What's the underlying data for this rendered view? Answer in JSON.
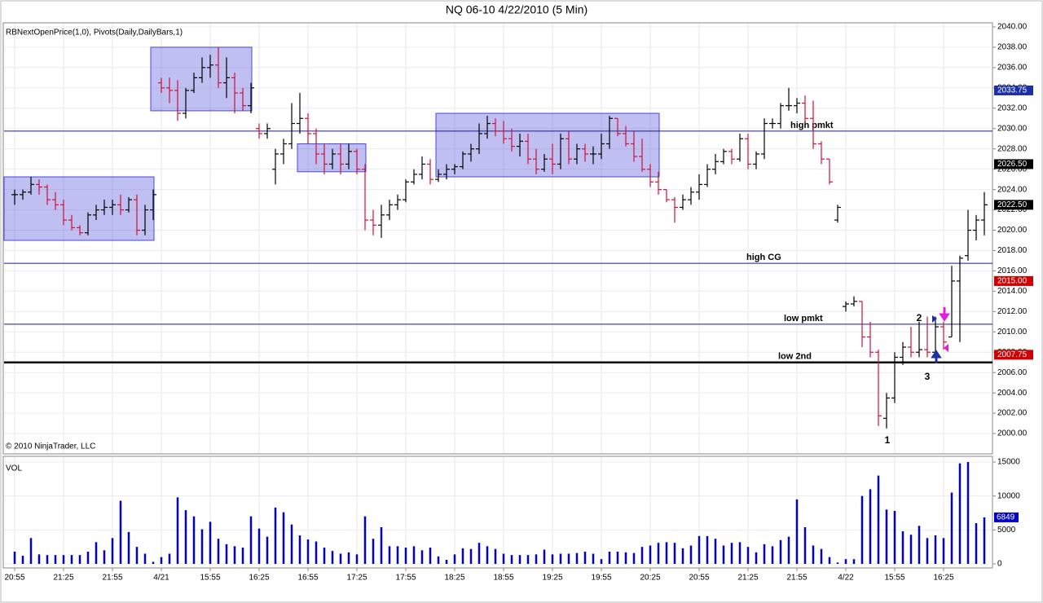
{
  "chart_data": [
    {
      "type": "ohlc",
      "title": "NQ 06-10  4/22/2010 (5 Min)",
      "subtitle": "RBNextOpenPrice(1,0), Pivots(Daily,DailyBars,1)",
      "footer": "© 2010 NinjaTrader, LLC",
      "up_color": "#000000",
      "down_color": "#d0103a",
      "box_color": "#4848d8",
      "open": [
        2023.5,
        2023.5,
        2023.75,
        2024.5,
        2024.25,
        2023,
        2022.5,
        2021,
        2020.25,
        2019.75,
        2021.5,
        2022,
        2022.25,
        2022.5,
        2022,
        2023,
        2020,
        2022,
        2034.5,
        2034,
        2033.75,
        2031.5,
        2033.75,
        2035,
        2036,
        2036.25,
        2034.5,
        2035,
        2033.5,
        2032.25,
        2030,
        2029.5,
        2026,
        2027.5,
        2028.5,
        2030.5,
        2031,
        2029.5,
        2027.5,
        2026.5,
        2027.5,
        2026.5,
        2027.75,
        2026,
        2021,
        2020.5,
        2021.5,
        2022.5,
        2023,
        2024.75,
        2025.5,
        2026.5,
        2025,
        2025.5,
        2026,
        2026.25,
        2027.5,
        2028,
        2029.5,
        2030.5,
        2029.75,
        2029,
        2028.25,
        2028.75,
        2027,
        2026,
        2027,
        2026.5,
        2029,
        2027,
        2028,
        2027.5,
        2027.5,
        2028.5,
        2031,
        2029.5,
        2028.5,
        2027.25,
        2026,
        2024.75,
        2024,
        2023,
        2022.25,
        2023,
        2023.75,
        2024.5,
        2026,
        2026.75,
        2027.75,
        2027,
        2029,
        2026.5,
        2027.5,
        2030.5,
        2030.5,
        2032.25,
        2032.25,
        2032.5,
        2031,
        2028.5,
        2027,
        2021,
        2012.5,
        2012.75,
        2013,
        2009.5,
        2008,
        2001.5,
        2003.5,
        2007.5,
        2008.5,
        2008,
        2008.25,
        2008,
        2010.5,
        2009.5,
        2015,
        2017.5,
        2020,
        2021
      ],
      "high": [
        2024,
        2024,
        2025.25,
        2025,
        2024.5,
        2023.75,
        2023,
        2021.5,
        2020.5,
        2021.75,
        2022.5,
        2023,
        2023,
        2023.5,
        2023.25,
        2023.5,
        2022.5,
        2024,
        2035,
        2035,
        2034.75,
        2034,
        2035.5,
        2037,
        2037.25,
        2038,
        2037,
        2035.5,
        2034,
        2034.5,
        2030.5,
        2030.5,
        2028,
        2029,
        2032.5,
        2033.5,
        2031.5,
        2030,
        2028.5,
        2028,
        2028.5,
        2028.5,
        2028,
        2026.5,
        2022,
        2022.5,
        2023,
        2023.5,
        2025,
        2026,
        2027.25,
        2027,
        2026,
        2026.5,
        2026.5,
        2027.75,
        2028.5,
        2030.5,
        2031.25,
        2031,
        2030.75,
        2030,
        2029.5,
        2029.5,
        2028,
        2027.5,
        2028.5,
        2029.5,
        2029.75,
        2028.5,
        2028.5,
        2028.25,
        2029.5,
        2031.25,
        2031,
        2030.25,
        2029.75,
        2029,
        2026.5,
        2025.75,
        2024,
        2023.25,
        2023.5,
        2024.25,
        2025.5,
        2026.5,
        2027.5,
        2028,
        2028,
        2029.5,
        2029.5,
        2027.75,
        2031,
        2031,
        2032.5,
        2034,
        2033,
        2033.25,
        2032.75,
        2028.75,
        2027,
        2022.5,
        2013,
        2013.5,
        2013,
        2011,
        2008.25,
        2004,
        2008,
        2009,
        2010.5,
        2011,
        2011.5,
        2011.5,
        2011,
        2016.5,
        2017.5,
        2022,
        2021.5,
        2023.75
      ],
      "low": [
        2022.5,
        2023,
        2023.5,
        2023.5,
        2022.5,
        2022,
        2020.5,
        2020,
        2019.5,
        2019.5,
        2021,
        2021.5,
        2021.5,
        2021.5,
        2021.75,
        2019.5,
        2019.5,
        2021,
        2033.5,
        2032.5,
        2030.75,
        2031,
        2033.5,
        2034.5,
        2035,
        2034,
        2033,
        2031.5,
        2031.75,
        2031.5,
        2029,
        2029,
        2024.5,
        2026.5,
        2028,
        2029.5,
        2028.5,
        2026.5,
        2025.5,
        2026,
        2025.5,
        2026,
        2025.5,
        2020,
        2019.5,
        2019.25,
        2021,
        2022,
        2022.75,
        2024.5,
        2025,
        2024.5,
        2024.75,
        2025,
        2025.5,
        2026,
        2026.75,
        2027.5,
        2029,
        2029.25,
        2028.5,
        2027.75,
        2027.25,
        2026.5,
        2025.5,
        2025.75,
        2025.5,
        2026,
        2026.5,
        2026.5,
        2026.75,
        2026.5,
        2027,
        2028,
        2029.25,
        2028.25,
        2026.75,
        2025.75,
        2024.25,
        2023.5,
        2022.75,
        2020.75,
        2022,
        2022.5,
        2023,
        2024.25,
        2025.5,
        2026.5,
        2026.5,
        2026.75,
        2026,
        2026,
        2027,
        2030,
        2030,
        2031.75,
        2031.5,
        2030.5,
        2028,
        2026.5,
        2024.5,
        2020.75,
        2012,
        2012.5,
        2008.5,
        2007.5,
        2000.75,
        2000.5,
        2003,
        2006.75,
        2007.5,
        2007.5,
        2007.5,
        2008,
        2008.25,
        2009.5,
        2009,
        2017,
        2019,
        2019.5
      ],
      "close": [
        2023.5,
        2023.75,
        2024.5,
        2024.25,
        2023,
        2022.5,
        2021,
        2020.25,
        2019.75,
        2021.5,
        2022,
        2022.25,
        2022.5,
        2022,
        2023,
        2020,
        2022,
        2023.5,
        2034,
        2033.75,
        2031.5,
        2033.75,
        2035,
        2036,
        2036.25,
        2034.5,
        2035,
        2033.5,
        2032.25,
        2034,
        2029.5,
        2030,
        2027.5,
        2028.5,
        2030.5,
        2031,
        2029.5,
        2027.5,
        2026.5,
        2027.5,
        2026.5,
        2027.75,
        2026,
        2021,
        2020.5,
        2021.5,
        2022.5,
        2023,
        2024.75,
        2025.5,
        2026.5,
        2025,
        2025.5,
        2026,
        2026.25,
        2027.5,
        2028,
        2029.5,
        2030.5,
        2029.75,
        2029,
        2028.25,
        2028.75,
        2027,
        2026,
        2027,
        2026.5,
        2029,
        2027,
        2028,
        2027.5,
        2027.5,
        2028.5,
        2031,
        2029.5,
        2028.5,
        2027.25,
        2026,
        2024.75,
        2024,
        2023,
        2022.25,
        2023,
        2023.75,
        2024.5,
        2026,
        2026.75,
        2027.75,
        2027,
        2029,
        2026.5,
        2027.5,
        2030.5,
        2030.5,
        2032.25,
        2032.25,
        2032.5,
        2031,
        2028.5,
        2027,
        2024.75,
        2022.25,
        2012.75,
        2013,
        2009.5,
        2008,
        2001.75,
        2003.5,
        2007.5,
        2008.5,
        2008,
        2008.25,
        2008,
        2010.5,
        2009,
        2015,
        2017.25,
        2020,
        2021,
        2022.5
      ],
      "ylim": [
        1998,
        2040
      ],
      "yticks": [
        {
          "value": 2000,
          "label": "2000.00"
        },
        {
          "value": 2002,
          "label": "2002.00"
        },
        {
          "value": 2004,
          "label": "2004.00"
        },
        {
          "value": 2006,
          "label": "2006.00"
        },
        {
          "value": 2008,
          "label": "2008.00"
        },
        {
          "value": 2010,
          "label": "2010.00"
        },
        {
          "value": 2012,
          "label": "2012.00"
        },
        {
          "value": 2014,
          "label": "2014.00"
        },
        {
          "value": 2016,
          "label": "2016.00"
        },
        {
          "value": 2018,
          "label": "2018.00"
        },
        {
          "value": 2020,
          "label": "2020.00"
        },
        {
          "value": 2022,
          "label": "2022.00"
        },
        {
          "value": 2024,
          "label": "2024.00"
        },
        {
          "value": 2026,
          "label": "2026.00"
        },
        {
          "value": 2028,
          "label": "2028.00"
        },
        {
          "value": 2030,
          "label": "2030.00"
        },
        {
          "value": 2032,
          "label": "2032.00"
        },
        {
          "value": 2034,
          "label": "2034.00"
        },
        {
          "value": 2036,
          "label": "2036.00"
        },
        {
          "value": 2038,
          "label": "2038.00"
        },
        {
          "value": 2040,
          "label": "2040.00"
        }
      ],
      "levels": [
        {
          "name": "high pmkt",
          "value": 2029.75,
          "color": "#1a1a8c"
        },
        {
          "name": "high CG",
          "value": 2016.75,
          "color": "#1a1a8c"
        },
        {
          "name": "low pmkt",
          "value": 2010.75,
          "color": "#1a1a8c"
        },
        {
          "name": "low 2nd",
          "value": 2007,
          "color": "#000000"
        }
      ],
      "boxes": [
        {
          "from": 0,
          "to": 17,
          "low": 2019,
          "high": 2025.25
        },
        {
          "from": 18,
          "to": 29,
          "low": 2031.75,
          "high": 2038
        },
        {
          "from": 36,
          "to": 43,
          "low": 2025.75,
          "high": 2028.5
        },
        {
          "from": 53,
          "to": 79,
          "low": 2025.25,
          "high": 2031.5
        }
      ],
      "price_markers": [
        {
          "value": 2033.75,
          "label": "2033.75",
          "color": "#1c2fa8"
        },
        {
          "value": 2026.5,
          "label": "2026.50",
          "color": "#000000"
        },
        {
          "value": 2022.5,
          "label": "2022.50",
          "color": "#000000"
        },
        {
          "value": 2015,
          "label": "2015.00",
          "color": "#d00000"
        },
        {
          "value": 2007.75,
          "label": "2007.75",
          "color": "#d00000"
        }
      ],
      "annotations": [
        "1",
        "2",
        "3"
      ],
      "grid": true
    },
    {
      "type": "bar",
      "title": "VOL",
      "color": "#0000c8",
      "categories": [
        "20:55",
        null,
        null,
        null,
        null,
        null,
        "21:25",
        null,
        null,
        null,
        null,
        null,
        "21:55",
        null,
        null,
        null,
        null,
        null,
        "4/21",
        null,
        null,
        null,
        null,
        null,
        "15:55",
        null,
        null,
        null,
        null,
        null,
        "16:25",
        null,
        null,
        null,
        null,
        null,
        "16:55",
        null,
        null,
        null,
        null,
        null,
        "17:25",
        null,
        null,
        null,
        null,
        null,
        "17:55",
        null,
        null,
        null,
        null,
        null,
        "18:25",
        null,
        null,
        null,
        null,
        null,
        "18:55",
        null,
        null,
        null,
        null,
        null,
        "19:25",
        null,
        null,
        null,
        null,
        null,
        "19:55",
        null,
        null,
        null,
        null,
        null,
        "20:25",
        null,
        null,
        null,
        null,
        null,
        "20:55",
        null,
        null,
        null,
        null,
        null,
        "21:25",
        null,
        null,
        null,
        null,
        null,
        "21:55",
        null,
        null,
        null,
        null,
        null,
        "4/22",
        null,
        null,
        null,
        null,
        null,
        "15:55",
        null,
        null,
        null,
        null,
        null,
        "16:25",
        null,
        null,
        null,
        null,
        null
      ],
      "values": [
        1800,
        1200,
        3800,
        1400,
        1300,
        1300,
        1300,
        1300,
        1300,
        1800,
        3200,
        2000,
        3800,
        9300,
        4700,
        2500,
        1500,
        300,
        1000,
        1500,
        9800,
        7900,
        7000,
        5100,
        6200,
        3700,
        2900,
        2600,
        2400,
        7000,
        5200,
        4000,
        8300,
        7600,
        5800,
        4200,
        3600,
        3300,
        2400,
        1900,
        1500,
        1700,
        1400,
        7000,
        3700,
        5400,
        2600,
        2600,
        2400,
        2600,
        2000,
        2400,
        1100,
        600,
        1400,
        2300,
        2200,
        3100,
        2600,
        2200,
        1500,
        1300,
        1300,
        1300,
        1400,
        2100,
        1400,
        1500,
        1500,
        1600,
        1800,
        1500,
        700,
        1800,
        1800,
        1700,
        1600,
        2500,
        2700,
        3100,
        3200,
        3100,
        2300,
        2700,
        4100,
        4100,
        3700,
        2700,
        3100,
        3200,
        2500,
        1700,
        2900,
        2600,
        3500,
        4000,
        9500,
        5400,
        2700,
        2200,
        1000,
        200,
        700,
        700,
        10000,
        11000,
        13000,
        8000,
        7800,
        4800,
        4300,
        5600,
        3800,
        4200,
        3800,
        10500,
        14800,
        15000,
        6000,
        6849
      ],
      "ylim": [
        -600,
        15840
      ],
      "yticks": [
        0,
        5000,
        10000,
        15000
      ],
      "grid": true
    }
  ]
}
